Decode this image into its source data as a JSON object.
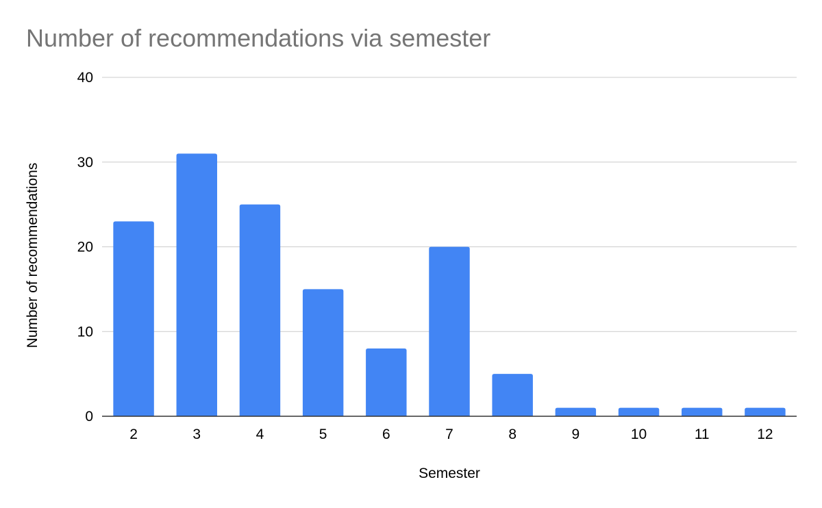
{
  "chart_data": {
    "type": "bar",
    "title": "Number of recommendations via semester",
    "xlabel": "Semester",
    "ylabel": "Number of recommendations",
    "categories": [
      "2",
      "3",
      "4",
      "5",
      "6",
      "7",
      "8",
      "9",
      "10",
      "11",
      "12"
    ],
    "values": [
      23,
      31,
      25,
      15,
      8,
      20,
      5,
      1,
      1,
      1,
      1
    ],
    "ylim": [
      0,
      40
    ],
    "yticks": [
      0,
      10,
      20,
      30,
      40
    ],
    "ytick_labels": [
      "0",
      "10",
      "20",
      "30",
      "40"
    ],
    "grid": true,
    "legend": "none",
    "bar_color": "#4285f4"
  }
}
